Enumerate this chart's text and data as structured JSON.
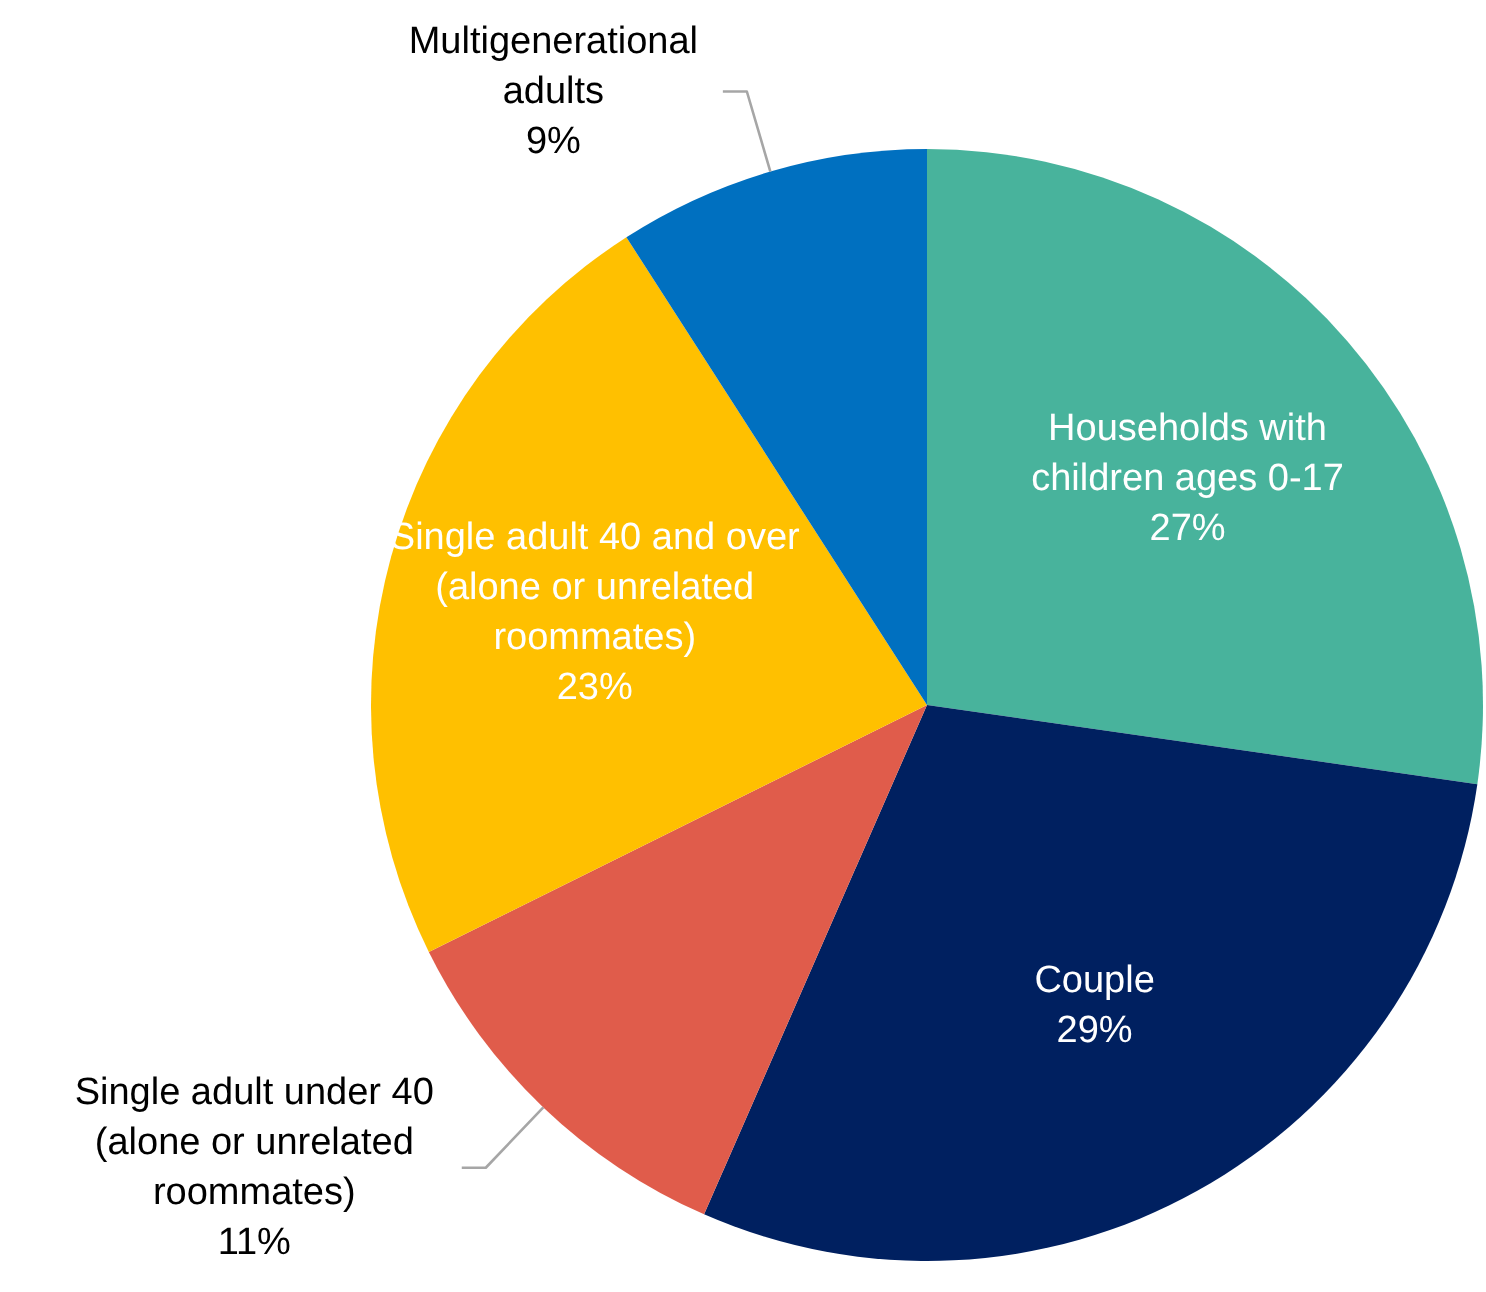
{
  "chart_data": {
    "type": "pie",
    "categories": [
      "Households with\nchildren ages 0-17",
      "Couple",
      "Single adult under 40\n(alone or unrelated\nroommates)",
      "Single adult 40 and over\n(alone or unrelated\nroommates)",
      "Multigenerational\nadults"
    ],
    "values": [
      27,
      29,
      11,
      23,
      9
    ],
    "colors": [
      "#48b39c",
      "#002060",
      "#e05c4b",
      "#ffc000",
      "#0070c0"
    ],
    "value_labels": [
      "27%",
      "29%",
      "11%",
      "23%",
      "9%"
    ]
  }
}
